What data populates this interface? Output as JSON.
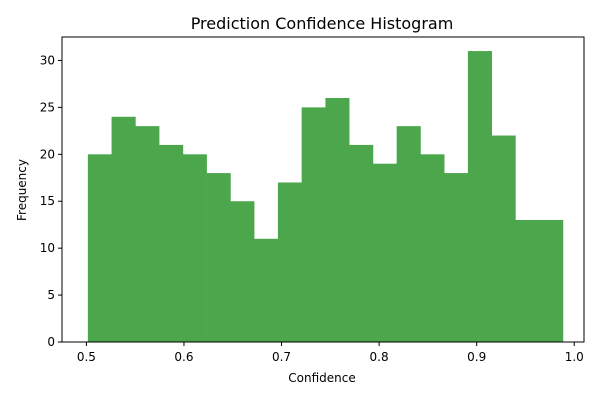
{
  "chart_data": {
    "type": "bar",
    "subtype": "histogram",
    "title": "Prediction Confidence Histogram",
    "xlabel": "Confidence",
    "ylabel": "Frequency",
    "bar_color": "#4ca64c",
    "xlim": [
      0.475,
      1.01
    ],
    "ylim": [
      0,
      32.5
    ],
    "xticks": [
      0.5,
      0.6,
      0.7,
      0.8,
      0.9,
      1.0
    ],
    "xtick_labels": [
      "0.5",
      "0.6",
      "0.7",
      "0.8",
      "0.9",
      "1.0"
    ],
    "yticks": [
      0,
      5,
      10,
      15,
      20,
      25,
      30
    ],
    "ytick_labels": [
      "0",
      "5",
      "10",
      "15",
      "20",
      "25",
      "30"
    ],
    "bin_edges": [
      0.5015,
      0.5258,
      0.5502,
      0.5745,
      0.5989,
      0.6232,
      0.6476,
      0.6719,
      0.6963,
      0.7206,
      0.745,
      0.7693,
      0.7937,
      0.818,
      0.8424,
      0.8667,
      0.891,
      0.9154,
      0.9397,
      0.9641,
      0.9884
    ],
    "values": [
      20,
      24,
      23,
      21,
      20,
      18,
      15,
      11,
      17,
      25,
      26,
      21,
      19,
      23,
      20,
      18,
      31,
      22,
      13,
      13
    ],
    "grid": false
  }
}
